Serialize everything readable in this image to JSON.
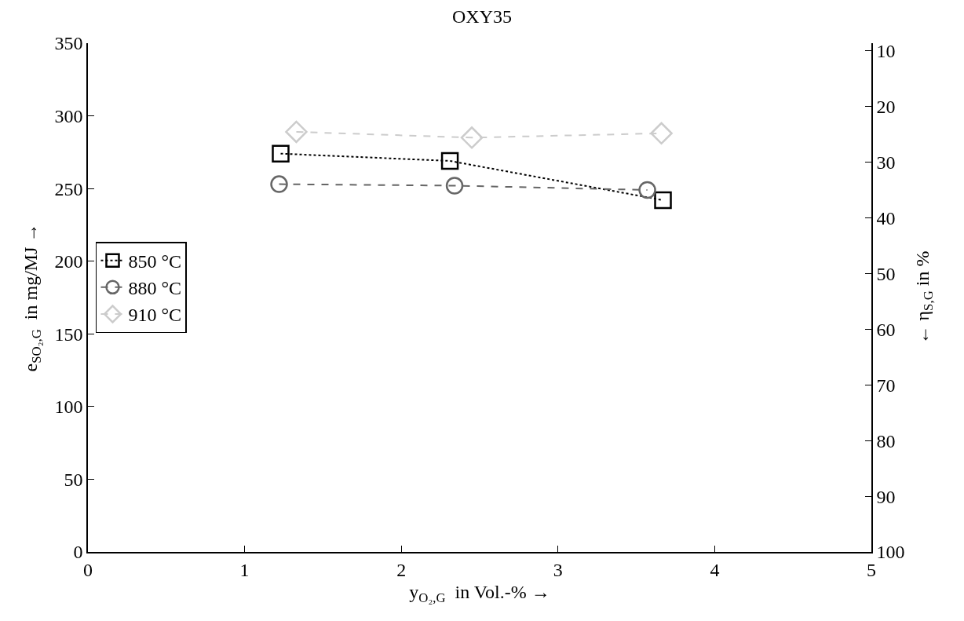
{
  "chart_data": {
    "type": "line",
    "title": "OXY35",
    "xlabel": "y$_{O₂,G}$  in Vol.-% →",
    "ylabel": "e$_{SO₂,G}$  in mg/MJ →",
    "y2label": "← η$_{S,G}$ in %",
    "xlim": [
      0,
      5
    ],
    "xticks": [
      0,
      1,
      2,
      3,
      4,
      5
    ],
    "ylim": [
      0,
      350
    ],
    "yticks": [
      0,
      50,
      100,
      150,
      200,
      250,
      300,
      350
    ],
    "y2lim": [
      100,
      8.6
    ],
    "y2ticks": [
      10,
      20,
      30,
      40,
      50,
      60,
      70,
      80,
      90,
      100
    ],
    "legend": "left",
    "series": [
      {
        "name": "850 °C",
        "color": "#000000",
        "marker": "square",
        "line_style": "dotted",
        "x": [
          1.23,
          2.31,
          3.67
        ],
        "values": [
          274,
          269,
          242
        ]
      },
      {
        "name": "880 °C",
        "color": "#666666",
        "marker": "circle",
        "line_style": "dashed",
        "x": [
          1.22,
          2.34,
          3.57
        ],
        "values": [
          253,
          252,
          249
        ]
      },
      {
        "name": "910 °C",
        "color": "#cccccc",
        "marker": "diamond",
        "line_style": "dashed",
        "x": [
          1.33,
          2.45,
          3.66
        ],
        "values": [
          289,
          285,
          288
        ]
      }
    ]
  }
}
